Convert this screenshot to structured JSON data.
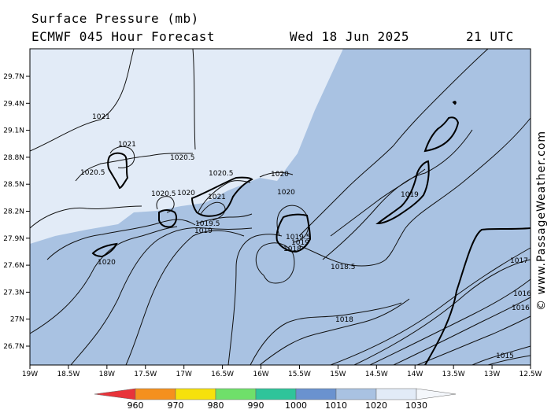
{
  "header": {
    "title": "Surface Pressure (mb)",
    "subtitle": "ECMWF 045 Hour Forecast",
    "date": "Wed 18 Jun 2025",
    "time": "21 UTC"
  },
  "credit": "© www.PassageWeather.com",
  "axes": {
    "lat_ticks": [
      "29.7N",
      "29.4N",
      "29.1N",
      "28.8N",
      "28.5N",
      "28.2N",
      "27.9N",
      "27.6N",
      "27.3N",
      "27N",
      "26.7N"
    ],
    "lon_ticks": [
      "19W",
      "18.5W",
      "18W",
      "17.5W",
      "17W",
      "16.5W",
      "16W",
      "15.5W",
      "15W",
      "14.5W",
      "14W",
      "13.5W",
      "13W",
      "12.5W"
    ]
  },
  "isobar_labels": [
    {
      "id": "l1021a",
      "text": "1021"
    },
    {
      "id": "l1021b",
      "text": "1021"
    },
    {
      "id": "l10205a",
      "text": "1020.5"
    },
    {
      "id": "l10205b",
      "text": "1020.5"
    },
    {
      "id": "l10205c",
      "text": "1020.5"
    },
    {
      "id": "l10205d",
      "text": "1020.5"
    },
    {
      "id": "l1020a",
      "text": "1020"
    },
    {
      "id": "l1020b",
      "text": "1020"
    },
    {
      "id": "l1020c",
      "text": "1020"
    },
    {
      "id": "l1020d",
      "text": "1020"
    },
    {
      "id": "l1021c",
      "text": "1021"
    },
    {
      "id": "l10195a",
      "text": "1019.5"
    },
    {
      "id": "l1019a",
      "text": "1019"
    },
    {
      "id": "l10195b",
      "text": "1019.5"
    },
    {
      "id": "l1019b",
      "text": "1019"
    },
    {
      "id": "l1018a",
      "text": "1018"
    },
    {
      "id": "l10185",
      "text": "1018.5"
    },
    {
      "id": "l1018b",
      "text": "1018"
    },
    {
      "id": "l1019c",
      "text": "1019"
    },
    {
      "id": "l1017",
      "text": "1017"
    },
    {
      "id": "l1016a",
      "text": "1016"
    },
    {
      "id": "l1016b",
      "text": "1016"
    },
    {
      "id": "l1015",
      "text": "1015"
    }
  ],
  "colorbar": {
    "labels": [
      "960",
      "970",
      "980",
      "990",
      "1000",
      "1010",
      "1020",
      "1030"
    ],
    "colors": [
      "#e8333a",
      "#f5901e",
      "#f6e10c",
      "#6fe06a",
      "#2fc49a",
      "#6a92cf",
      "#a9c2e2",
      "#e2ebf7"
    ]
  },
  "colors": {
    "band_1010_1020": "#a9c2e2",
    "band_1020_1030": "#e2ebf7"
  }
}
